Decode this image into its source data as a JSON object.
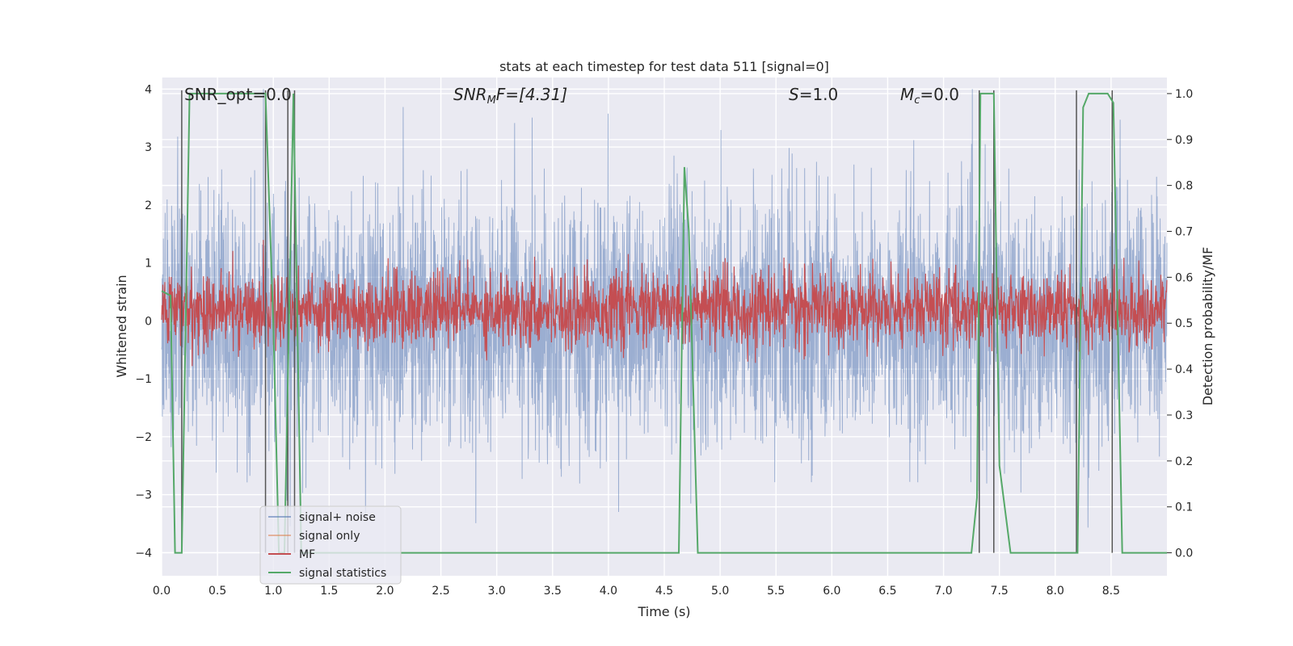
{
  "chart_data": {
    "type": "line",
    "title": "stats at each timestep for test data 511 [signal=0]",
    "xlabel": "Time (s)",
    "ylabel": "Whitened strain",
    "y2label": "Detection probability/MF",
    "xlim": [
      0.0,
      9.0
    ],
    "ylim": [
      -4.4,
      4.2
    ],
    "y2lim": [
      -0.05,
      1.035
    ],
    "xticks": [
      "0.0",
      "0.5",
      "1.0",
      "1.5",
      "2.0",
      "2.5",
      "3.0",
      "3.5",
      "4.0",
      "4.5",
      "5.0",
      "5.5",
      "6.0",
      "6.5",
      "7.0",
      "7.5",
      "8.0",
      "8.5"
    ],
    "yticks": [
      "4",
      "3",
      "2",
      "1",
      "0",
      "−1",
      "−2",
      "−3",
      "−4"
    ],
    "y2ticks": [
      "1.0",
      "0.9",
      "0.8",
      "0.7",
      "0.6",
      "0.5",
      "0.4",
      "0.3",
      "0.2",
      "0.1",
      "0.0"
    ],
    "grid": true,
    "legend_position": "lower-left",
    "annotations": {
      "snr_opt": "SNR_opt=0.0",
      "snr_mf_base": "SNR",
      "snr_mf_sub": "M",
      "snr_mf_tail": "F=[4.31]",
      "s_var": "S",
      "s_val": "=1.0",
      "mc_var": "M",
      "mc_sub": "c",
      "mc_val": "=0.0"
    },
    "series": [
      {
        "name": "signal+ noise",
        "color": "#4c72b0",
        "description_values": "Gaussian-like whitened noise spanning roughly -4 to 4 over 0-9 s",
        "amplitude_std": 1.05
      },
      {
        "name": "signal only",
        "color": "#dd8452",
        "values_summary": "zero everywhere (no signal)"
      },
      {
        "name": "MF",
        "color": "#c44e52",
        "axis": "right",
        "baseline": 0.53,
        "amplitude": 0.04
      },
      {
        "name": "signal statistics",
        "color": "#55a868",
        "axis": "right",
        "x": [
          0.0,
          0.08,
          0.12,
          0.18,
          0.25,
          0.3,
          0.93,
          1.0,
          1.05,
          1.1,
          1.18,
          1.25,
          1.35,
          4.63,
          4.68,
          4.72,
          4.8,
          4.85,
          7.25,
          7.3,
          7.33,
          7.37,
          7.45,
          7.5,
          7.6,
          7.65,
          8.2,
          8.25,
          8.3,
          8.4,
          8.47,
          8.52,
          8.6,
          9.0
        ],
        "y": [
          0.57,
          0.56,
          0.0,
          0.0,
          1.0,
          1.0,
          1.0,
          0.5,
          0.0,
          0.0,
          1.0,
          0.0,
          0.0,
          0.0,
          0.84,
          0.7,
          0.0,
          0.0,
          0.0,
          0.12,
          1.0,
          1.0,
          1.0,
          0.19,
          0.0,
          0.0,
          0.0,
          0.97,
          1.0,
          1.0,
          1.0,
          0.98,
          0.0,
          0.0
        ]
      }
    ],
    "vlines": [
      0.18,
      0.93,
      1.13,
      1.19,
      7.32,
      7.45,
      8.19,
      8.51
    ],
    "vline_color": "#555555"
  }
}
